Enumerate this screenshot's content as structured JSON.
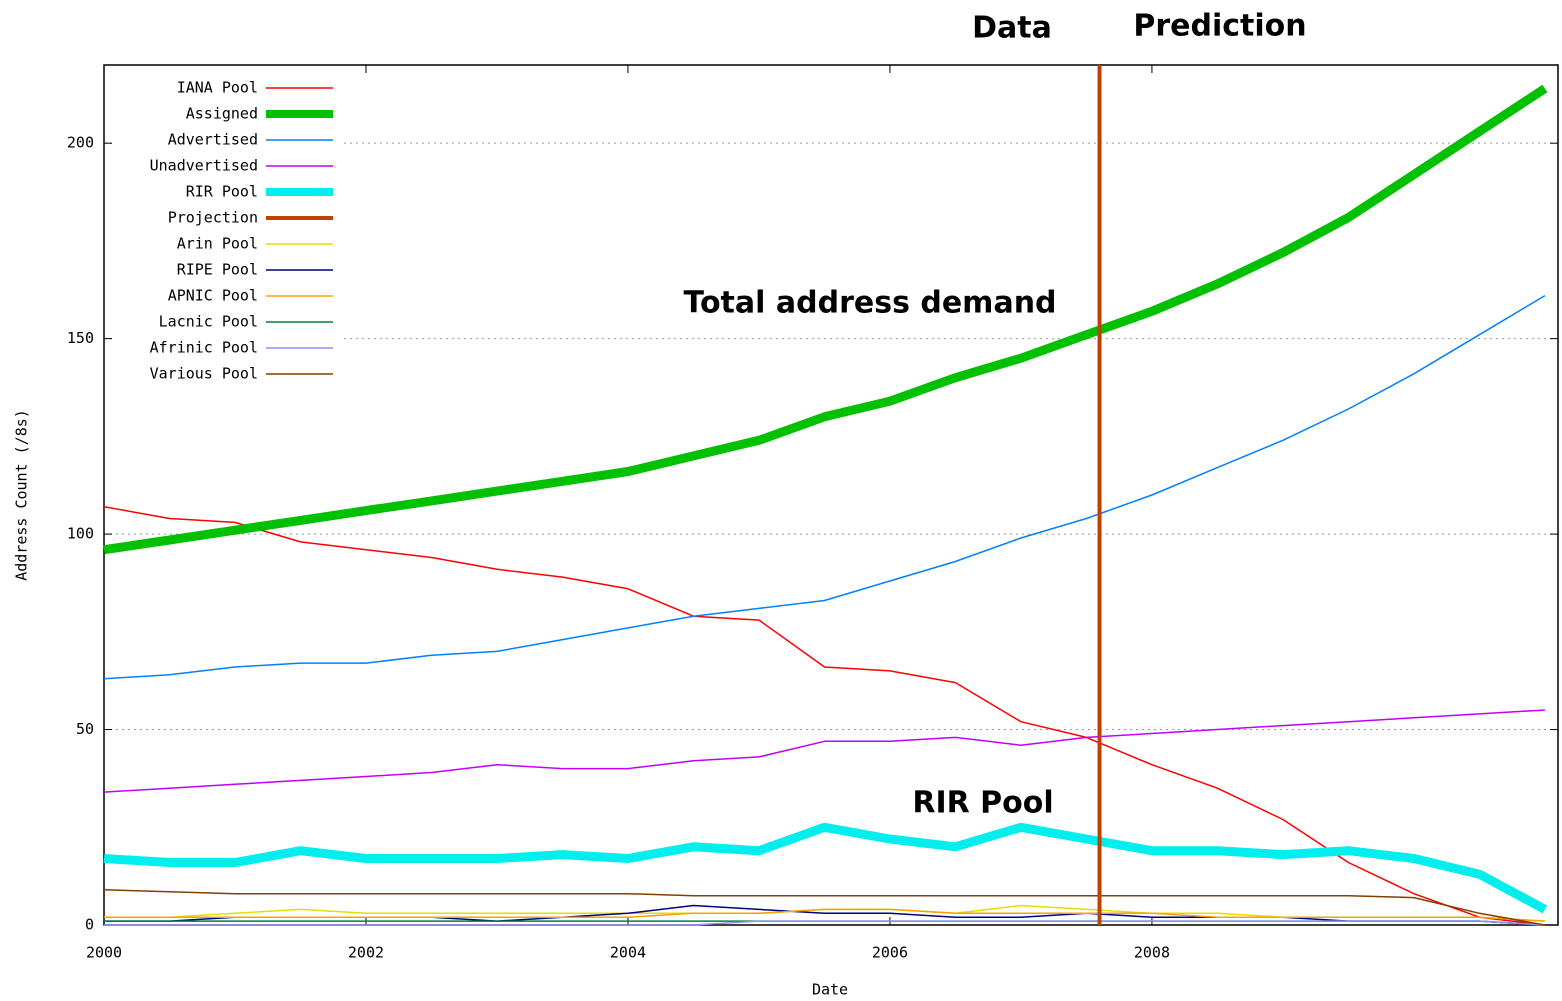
{
  "chart_data": {
    "type": "line",
    "annotations": [
      "Data",
      "Prediction",
      "Total address demand",
      "RIR Pool"
    ],
    "x_label": "Date",
    "y_label": "Address Count (/8s)",
    "x": [
      2000,
      2000.5,
      2001,
      2001.5,
      2002,
      2002.5,
      2003,
      2003.5,
      2004,
      2004.5,
      2005,
      2005.5,
      2006,
      2006.5,
      2007,
      2007.5,
      2008,
      2008.5,
      2009,
      2009.5,
      2010,
      2010.5,
      2011
    ],
    "series": [
      {
        "name": "IANA Pool",
        "color": "#ff0000",
        "width": 1.5,
        "values": [
          107,
          104,
          103,
          98,
          96,
          94,
          91,
          89,
          86,
          79,
          78,
          66,
          65,
          62,
          52,
          48,
          41,
          35,
          27,
          16,
          8,
          2,
          0
        ]
      },
      {
        "name": "Assigned",
        "color": "#00c000",
        "width": 9,
        "values": [
          96,
          98.5,
          101,
          103.5,
          106,
          108.5,
          111,
          113.5,
          116,
          120,
          124,
          130,
          134,
          140,
          145,
          151,
          157,
          164,
          172,
          181,
          192,
          203,
          214
        ]
      },
      {
        "name": "Advertised",
        "color": "#0080ff",
        "width": 1.5,
        "values": [
          63,
          64,
          66,
          67,
          67,
          69,
          70,
          73,
          76,
          79,
          81,
          83,
          88,
          93,
          99,
          104,
          110,
          117,
          124,
          132,
          141,
          151,
          161
        ]
      },
      {
        "name": "Unadvertised",
        "color": "#c000ff",
        "width": 1.5,
        "values": [
          34,
          35,
          36,
          37,
          38,
          39,
          41,
          40,
          40,
          42,
          43,
          47,
          47,
          48,
          46,
          48,
          49,
          50,
          51,
          52,
          53,
          54,
          55
        ]
      },
      {
        "name": "RIR Pool",
        "color": "#00eeee",
        "width": 9,
        "values": [
          17,
          16,
          16,
          19,
          17,
          17,
          17,
          18,
          17,
          20,
          19,
          25,
          22,
          20,
          25,
          22,
          19,
          19,
          18,
          19,
          17,
          13,
          4
        ]
      },
      {
        "name": "Arin Pool",
        "color": "#e0e000",
        "width": 1.5,
        "values": [
          2,
          2,
          3,
          4,
          3,
          3,
          3,
          3,
          3,
          3,
          3,
          4,
          4,
          3,
          5,
          4,
          3,
          3,
          2,
          2,
          2,
          2,
          1
        ]
      },
      {
        "name": "RIPE Pool",
        "color": "#000080",
        "width": 1.5,
        "values": [
          1,
          1,
          2,
          2,
          2,
          2,
          1,
          2,
          3,
          5,
          4,
          3,
          3,
          2,
          2,
          3,
          2,
          2,
          2,
          1,
          1,
          1,
          0
        ]
      },
      {
        "name": "APNIC Pool",
        "color": "#ffa000",
        "width": 1.5,
        "values": [
          2,
          2,
          2,
          2,
          2,
          2,
          2,
          2,
          2,
          3,
          3,
          4,
          4,
          3,
          3,
          3,
          3,
          2,
          2,
          2,
          2,
          2,
          1
        ]
      },
      {
        "name": "Lacnic Pool",
        "color": "#008040",
        "width": 1.5,
        "values": [
          1,
          1,
          1,
          1,
          1,
          1,
          1,
          1,
          1,
          1,
          1,
          1,
          1,
          1,
          1,
          1,
          1,
          1,
          1,
          1,
          1,
          1,
          0
        ]
      },
      {
        "name": "Afrinic Pool",
        "color": "#9090ff",
        "width": 1.5,
        "values": [
          0,
          0,
          0,
          0,
          0,
          0,
          0,
          0,
          0,
          0,
          1,
          1,
          1,
          1,
          1,
          1,
          1,
          1,
          1,
          1,
          1,
          1,
          0
        ]
      },
      {
        "name": "Various Pool",
        "color": "#804000",
        "width": 1.5,
        "values": [
          9,
          8.5,
          8,
          8,
          8,
          8,
          8,
          8,
          8,
          7.5,
          7.5,
          7.5,
          7.5,
          7.5,
          7.5,
          7.5,
          7.5,
          7.5,
          7.5,
          7.5,
          7,
          3,
          0
        ]
      }
    ],
    "projection": {
      "name": "Projection",
      "color": "#c04000",
      "x": 2007.6
    },
    "xlim": [
      2000,
      2011.1
    ],
    "xticks": [
      2000,
      2002,
      2004,
      2006,
      2008
    ],
    "ylim": [
      0,
      220
    ],
    "yticks": [
      0,
      50,
      100,
      150,
      200
    ],
    "grid": true
  }
}
